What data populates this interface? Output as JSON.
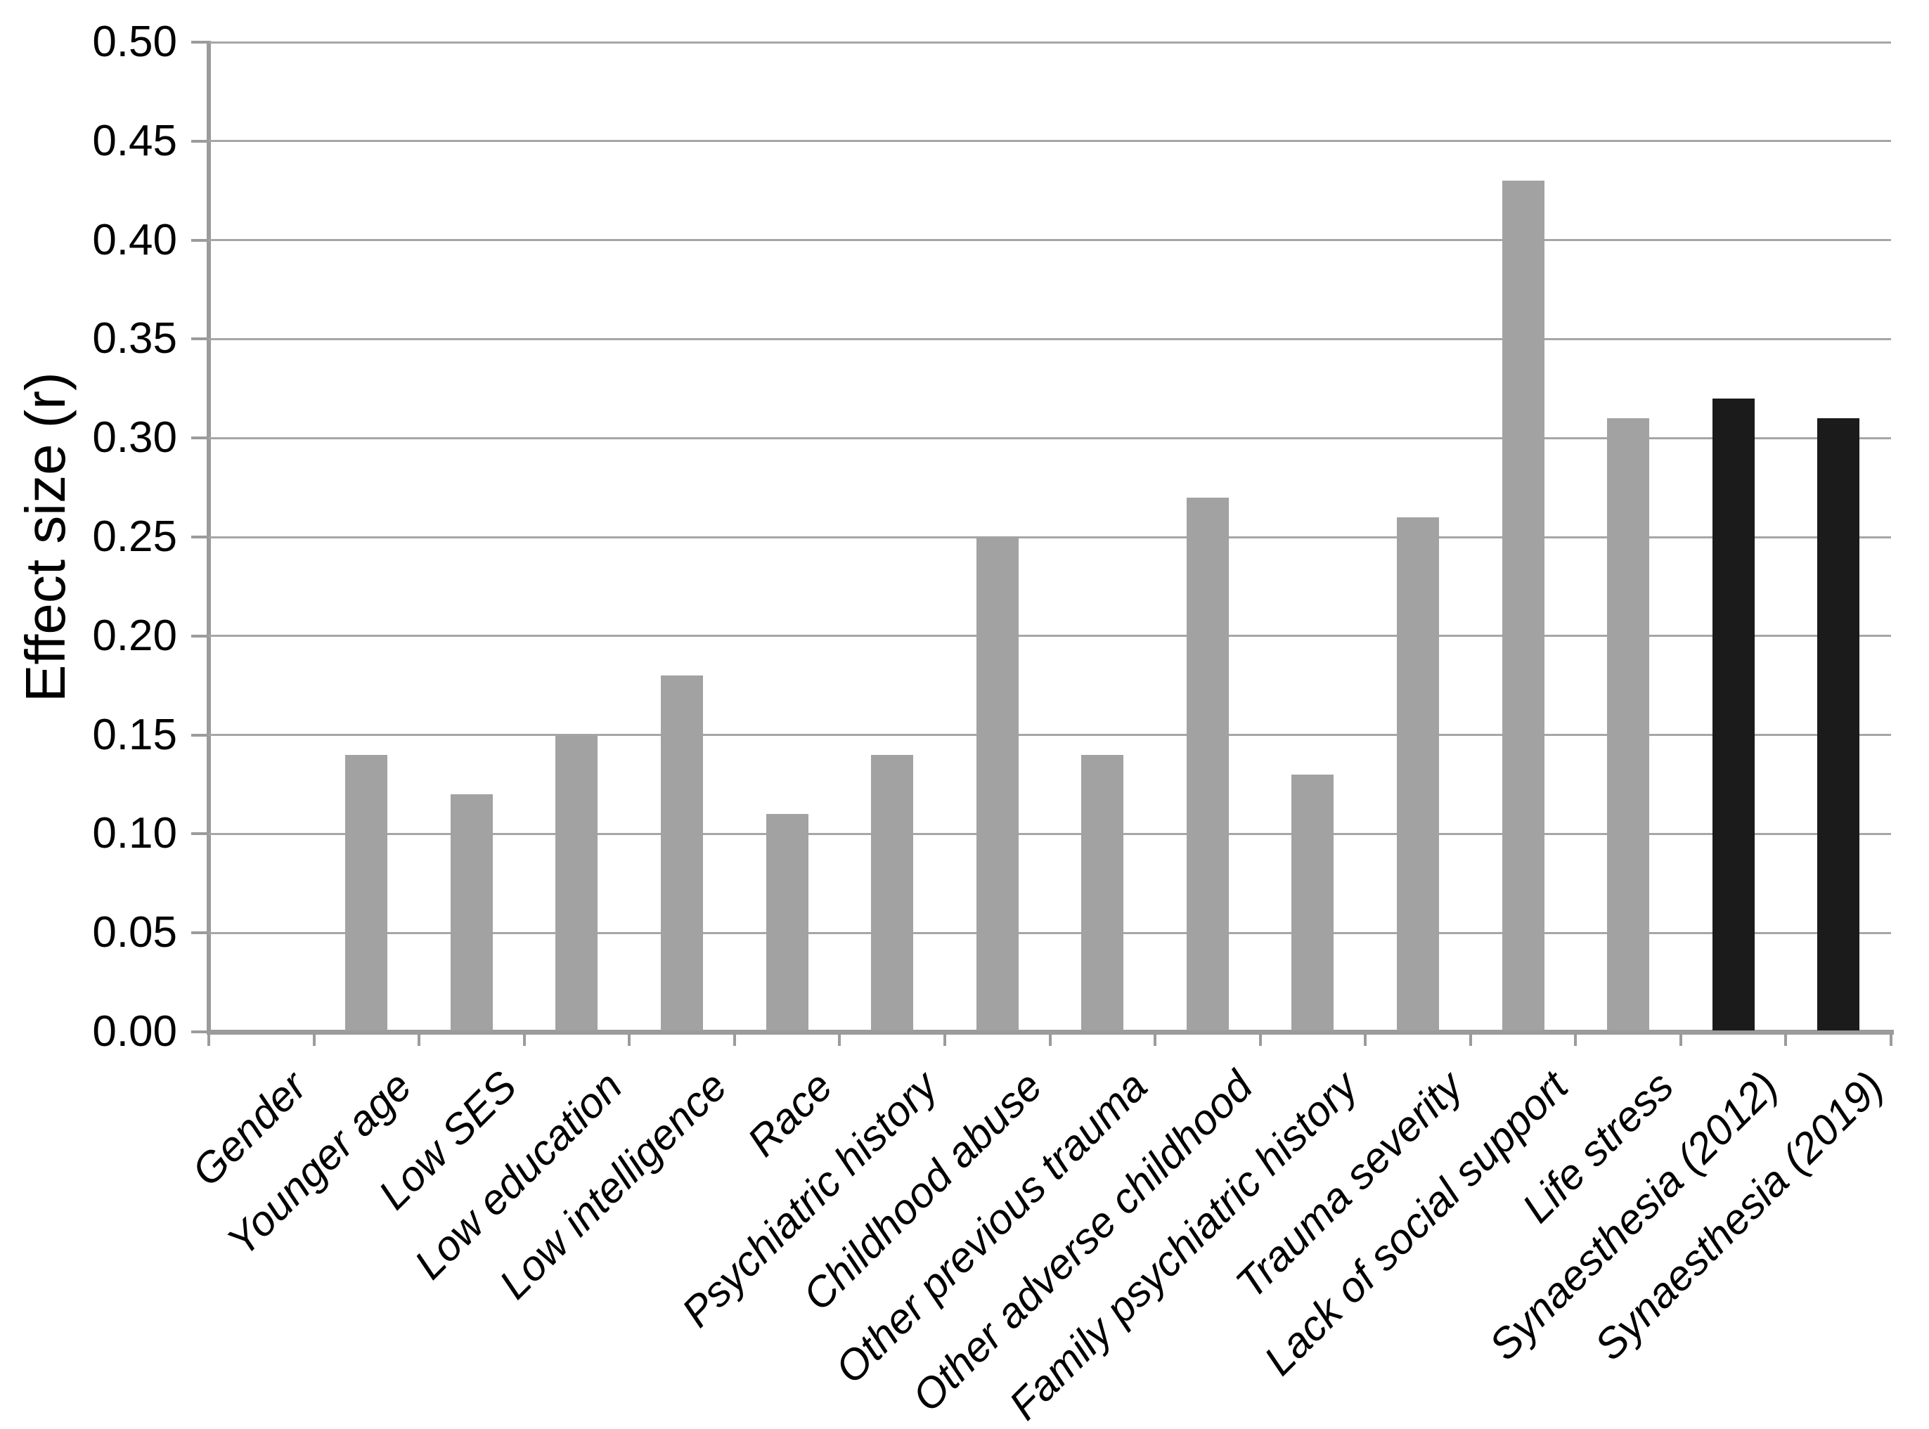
{
  "chart_data": {
    "type": "bar",
    "title": "",
    "xlabel": "",
    "ylabel": "Effect size (r)",
    "ylim": [
      0,
      0.5
    ],
    "ytick_step": 0.05,
    "ytick_labels": [
      "0.00",
      "0.05",
      "0.10",
      "0.15",
      "0.20",
      "0.25",
      "0.30",
      "0.35",
      "0.40",
      "0.45",
      "0.50"
    ],
    "grid": "horizontal",
    "legend": "none",
    "categories": [
      "Gender",
      "Younger age",
      "Low SES",
      "Low education",
      "Low intelligence",
      "Race",
      "Psychiatric history",
      "Childhood abuse",
      "Other previous trauma",
      "Other adverse childhood",
      "Family psychiatric history",
      "Trauma severity",
      "Lack of social support",
      "Life stress",
      "Synaesthesia (2012)",
      "Synaesthesia (2019)"
    ],
    "values": [
      0.0,
      0.14,
      0.12,
      0.15,
      0.18,
      0.11,
      0.14,
      0.25,
      0.14,
      0.27,
      0.13,
      0.26,
      0.43,
      0.31,
      0.32,
      0.31
    ],
    "bar_colors": [
      "#a2a2a2",
      "#a2a2a2",
      "#a2a2a2",
      "#a2a2a2",
      "#a2a2a2",
      "#a2a2a2",
      "#a2a2a2",
      "#a2a2a2",
      "#a2a2a2",
      "#a2a2a2",
      "#a2a2a2",
      "#a2a2a2",
      "#a2a2a2",
      "#a2a2a2",
      "#1b1b1b",
      "#1b1b1b"
    ],
    "colors": {
      "gray_bar": "#a2a2a2",
      "black_bar": "#1b1b1b",
      "gridline": "#a6a6a6",
      "axis": "#9b9b9b",
      "text": "#000000",
      "background": "#ffffff"
    }
  }
}
